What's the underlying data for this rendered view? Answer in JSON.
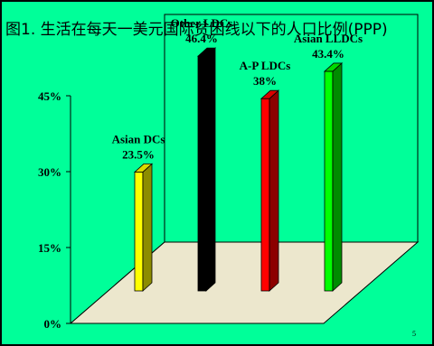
{
  "slide": {
    "title": "图1. 生活在每天一美元国际贫困线以下的人口比例(PPP)",
    "page_number": "5",
    "background_color": "#00ff99"
  },
  "chart_data": {
    "type": "bar",
    "style": "3d",
    "categories": [
      "Asian DCs",
      "Other LDCs",
      "A-P LDCs",
      "Asian LLDCs"
    ],
    "values": [
      23.5,
      46.4,
      38,
      43.4
    ],
    "data_labels": [
      [
        "Asian DCs",
        "23.5%"
      ],
      [
        "Other LDCs",
        "46.4%"
      ],
      [
        "A-P  LDCs",
        "38%"
      ],
      [
        "Asian LLDCs",
        "43.4%"
      ]
    ],
    "colors": [
      "#ffff00",
      "#000000",
      "#ff0000",
      "#00ff00"
    ],
    "y_ticks": [
      0,
      15,
      30,
      45
    ],
    "y_tick_labels": [
      "0%",
      "15%",
      "30%",
      "45%"
    ],
    "ylim": [
      0,
      45
    ],
    "floor_color": "#ece7cd",
    "grid": false,
    "legend": "none"
  }
}
